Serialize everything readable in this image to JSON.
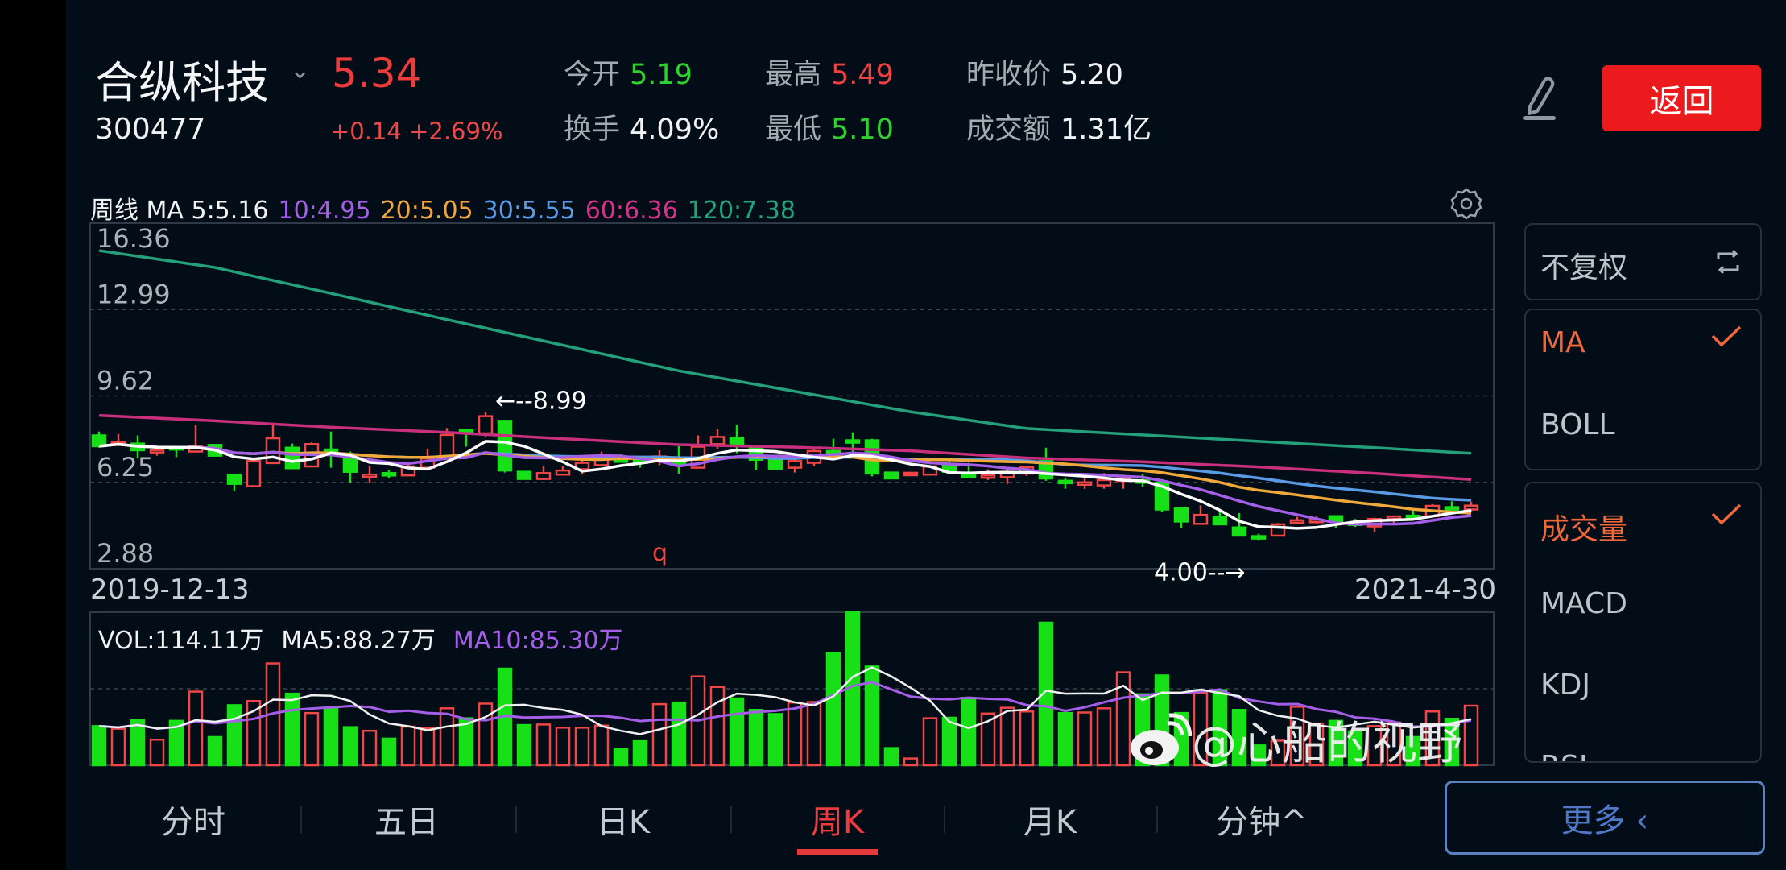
{
  "header": {
    "stock_name": "合纵科技",
    "stock_code": "300477",
    "price": "5.34",
    "change": "+0.14 +2.69%",
    "stats": [
      {
        "label": "今开",
        "value": "5.19",
        "color": "green"
      },
      {
        "label": "最高",
        "value": "5.49",
        "color": "red"
      },
      {
        "label": "昨收价",
        "value": "5.20",
        "color": "white"
      },
      {
        "label": "换手",
        "value": "4.09%",
        "color": "white"
      },
      {
        "label": "最低",
        "value": "5.10",
        "color": "green"
      },
      {
        "label": "成交额",
        "value": "1.31亿",
        "color": "white"
      }
    ],
    "back_label": "返回",
    "icons": {
      "edit": "pencil-icon",
      "dropdown": "chevron-down-icon"
    }
  },
  "ma_legend": [
    {
      "text": "周线 MA 5:5.16",
      "color": "#f0f2f4"
    },
    {
      "text": "10:4.95",
      "color": "#a55ee8"
    },
    {
      "text": "20:5.05",
      "color": "#f0a83a"
    },
    {
      "text": "30:5.55",
      "color": "#5a9be6"
    },
    {
      "text": "60:6.36",
      "color": "#d8318a"
    },
    {
      "text": "120:7.38",
      "color": "#24a07a"
    }
  ],
  "vol_legend": [
    {
      "text": "VOL:114.11万",
      "color": "#f0f2f4"
    },
    {
      "text": "MA5:88.27万",
      "color": "#f0f2f4"
    },
    {
      "text": "MA10:85.30万",
      "color": "#a55ee8"
    }
  ],
  "chart_data": {
    "type": "candlestick",
    "period": "weekly",
    "x_start_label": "2019-12-13",
    "x_end_label": "2021-4-30",
    "y_ticks": [
      "16.36",
      "12.99",
      "9.62",
      "6.25",
      "2.88"
    ],
    "ylim": [
      2.88,
      16.36
    ],
    "grid": true,
    "colors": {
      "up": "#f04646",
      "down": "#17e017",
      "ma5": "#ffffff",
      "ma10": "#a55ee8",
      "ma20": "#f0a83a",
      "ma30": "#5a9be6",
      "ma60": "#c8307e",
      "ma120": "#24a07a"
    },
    "annotations": [
      {
        "text": "←--8.99",
        "week": 20,
        "value": 8.99
      },
      {
        "text": "4.00--→",
        "week": 60,
        "value": 4.0
      },
      {
        "text": "q",
        "color": "#f04646"
      }
    ],
    "ohlc": [
      [
        8.08,
        8.23,
        7.6,
        7.66
      ],
      [
        7.71,
        8.13,
        7.66,
        7.81
      ],
      [
        7.76,
        8.08,
        7.18,
        7.5
      ],
      [
        7.48,
        7.6,
        7.29,
        7.51
      ],
      [
        7.62,
        7.66,
        7.24,
        7.58
      ],
      [
        7.45,
        8.5,
        7.45,
        7.66
      ],
      [
        7.71,
        7.74,
        7.26,
        7.29
      ],
      [
        6.55,
        6.58,
        5.92,
        6.19
      ],
      [
        6.1,
        7.08,
        6.06,
        7.08
      ],
      [
        7.0,
        8.55,
        7.0,
        7.97
      ],
      [
        7.6,
        7.76,
        6.76,
        6.8
      ],
      [
        6.87,
        7.81,
        6.87,
        7.74
      ],
      [
        7.53,
        8.23,
        6.82,
        7.39
      ],
      [
        7.18,
        7.45,
        6.24,
        6.66
      ],
      [
        6.5,
        6.87,
        6.24,
        6.55
      ],
      [
        6.61,
        6.71,
        6.4,
        6.57
      ],
      [
        6.52,
        6.97,
        6.52,
        6.87
      ],
      [
        6.82,
        7.55,
        6.82,
        7.18
      ],
      [
        7.24,
        8.37,
        7.24,
        8.1
      ],
      [
        8.29,
        8.34,
        7.64,
        8.26
      ],
      [
        8.16,
        8.99,
        8.02,
        8.83
      ],
      [
        8.65,
        8.69,
        6.63,
        6.71
      ],
      [
        6.66,
        6.68,
        6.36,
        6.38
      ],
      [
        6.38,
        6.87,
        6.34,
        6.61
      ],
      [
        6.55,
        6.87,
        6.52,
        6.71
      ],
      [
        6.76,
        7.13,
        6.55,
        7.01
      ],
      [
        6.92,
        7.45,
        6.9,
        7.13
      ],
      [
        7.18,
        7.34,
        7.03,
        7.05
      ],
      [
        7.1,
        7.18,
        6.82,
        7.06
      ],
      [
        7.13,
        7.5,
        6.92,
        7.26
      ],
      [
        7.18,
        7.66,
        6.59,
        6.92
      ],
      [
        6.82,
        8.08,
        6.82,
        7.64
      ],
      [
        7.74,
        8.34,
        7.55,
        8.02
      ],
      [
        7.99,
        8.5,
        7.39,
        7.71
      ],
      [
        7.57,
        7.71,
        6.73,
        7.13
      ],
      [
        7.15,
        7.18,
        6.74,
        6.76
      ],
      [
        6.82,
        7.22,
        6.63,
        7.08
      ],
      [
        7.01,
        7.53,
        6.87,
        7.47
      ],
      [
        7.47,
        7.95,
        7.24,
        7.34
      ],
      [
        7.89,
        8.2,
        7.45,
        7.85
      ],
      [
        7.89,
        7.95,
        6.48,
        6.59
      ],
      [
        6.63,
        6.65,
        6.38,
        6.4
      ],
      [
        6.58,
        6.66,
        6.55,
        6.62
      ],
      [
        6.55,
        6.87,
        6.55,
        6.87
      ],
      [
        6.92,
        7.08,
        6.63,
        6.66
      ],
      [
        6.54,
        7.01,
        6.45,
        6.51
      ],
      [
        6.49,
        6.76,
        6.34,
        6.52
      ],
      [
        6.45,
        6.76,
        6.19,
        6.66
      ],
      [
        6.59,
        6.9,
        6.5,
        6.84
      ],
      [
        7.08,
        7.6,
        6.31,
        6.4
      ],
      [
        6.31,
        6.4,
        6.0,
        6.27
      ],
      [
        6.22,
        6.4,
        6.0,
        6.25
      ],
      [
        6.13,
        6.61,
        6.0,
        6.34
      ],
      [
        6.37,
        6.55,
        6.0,
        6.4
      ],
      [
        6.33,
        6.59,
        6.08,
        6.3
      ],
      [
        6.24,
        6.26,
        5.08,
        5.19
      ],
      [
        5.24,
        5.26,
        4.45,
        4.72
      ],
      [
        4.63,
        5.35,
        4.63,
        4.98
      ],
      [
        4.91,
        5.19,
        4.59,
        4.61
      ],
      [
        4.49,
        5.05,
        4.14,
        4.17
      ],
      [
        4.15,
        4.24,
        4.0,
        4.12
      ],
      [
        4.17,
        4.66,
        4.14,
        4.61
      ],
      [
        4.74,
        4.91,
        4.61,
        4.77
      ],
      [
        4.76,
        4.95,
        4.61,
        4.79
      ],
      [
        4.93,
        4.95,
        4.45,
        4.72
      ],
      [
        4.68,
        4.82,
        4.51,
        4.66
      ],
      [
        4.53,
        4.87,
        4.3,
        4.82
      ],
      [
        4.9,
        4.95,
        4.63,
        4.92
      ],
      [
        4.95,
        5.14,
        4.84,
        4.91
      ],
      [
        4.93,
        5.4,
        4.93,
        5.33
      ],
      [
        5.28,
        5.51,
        5.16,
        5.25
      ],
      [
        5.19,
        5.49,
        5.1,
        5.34
      ]
    ],
    "ma60_points": [
      [
        0,
        8.86
      ],
      [
        6,
        8.65
      ],
      [
        12,
        8.4
      ],
      [
        18,
        8.2
      ],
      [
        24,
        7.95
      ],
      [
        30,
        7.72
      ],
      [
        36,
        7.62
      ],
      [
        42,
        7.48
      ],
      [
        48,
        7.2
      ],
      [
        54,
        7.05
      ],
      [
        60,
        6.85
      ],
      [
        66,
        6.6
      ],
      [
        71,
        6.36
      ]
    ],
    "ma120_points": [
      [
        0,
        15.29
      ],
      [
        6,
        14.63
      ],
      [
        12,
        13.62
      ],
      [
        18,
        12.6
      ],
      [
        24,
        11.6
      ],
      [
        30,
        10.6
      ],
      [
        36,
        9.8
      ],
      [
        42,
        9.0
      ],
      [
        48,
        8.35
      ],
      [
        54,
        8.1
      ],
      [
        60,
        7.85
      ],
      [
        66,
        7.6
      ],
      [
        71,
        7.38
      ]
    ],
    "volume_unit": "万",
    "volume_ylim": [
      0,
      293
    ],
    "volume": [
      75,
      70,
      87,
      49,
      85,
      141,
      54,
      115,
      123,
      195,
      137,
      100,
      110,
      73,
      66,
      51,
      74,
      71,
      109,
      90,
      118,
      185,
      77,
      78,
      72,
      72,
      76,
      32,
      46,
      117,
      120,
      170,
      150,
      128,
      106,
      98,
      120,
      121,
      214,
      293,
      189,
      33,
      13,
      90,
      91,
      129,
      99,
      110,
      103,
      273,
      100,
      101,
      109,
      178,
      136,
      172,
      100,
      139,
      144,
      106,
      38,
      47,
      112,
      80,
      85,
      65,
      75,
      82,
      54,
      103,
      89,
      114.11
    ]
  },
  "side_panel": {
    "adjust_label": "不复权",
    "main_indicators": [
      {
        "label": "MA",
        "selected": true
      },
      {
        "label": "BOLL",
        "selected": false
      }
    ],
    "sub_indicators": [
      {
        "label": "成交量",
        "selected": true
      },
      {
        "label": "MACD",
        "selected": false
      },
      {
        "label": "KDJ",
        "selected": false
      },
      {
        "label": "RSI",
        "selected": false
      }
    ]
  },
  "tabs": [
    {
      "label": "分时",
      "active": false
    },
    {
      "label": "五日",
      "active": false
    },
    {
      "label": "日K",
      "active": false
    },
    {
      "label": "周K",
      "active": true
    },
    {
      "label": "月K",
      "active": false
    },
    {
      "label": "分钟^",
      "active": false
    }
  ],
  "more_label": "更多 ‹",
  "watermark": "@心船的视野"
}
